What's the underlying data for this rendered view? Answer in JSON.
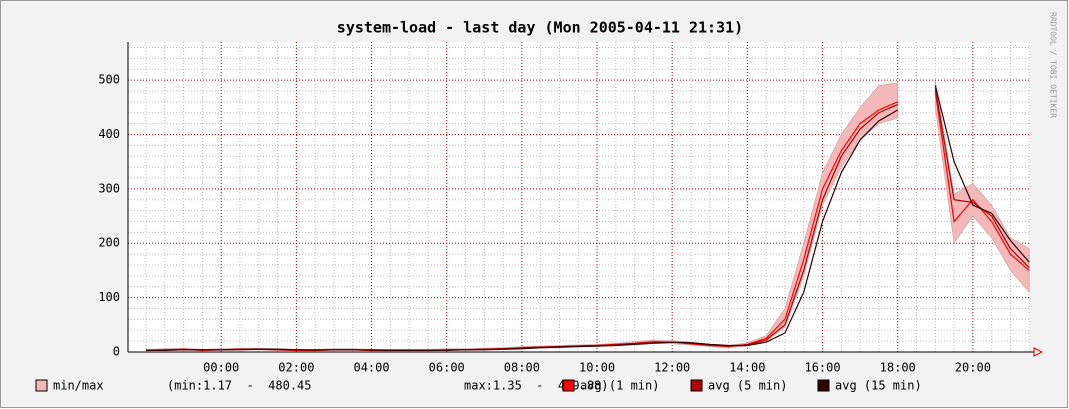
{
  "chart_data": {
    "type": "line",
    "title": "system-load - last day (Mon 2005-04-11 21:31)",
    "watermark": "RRDTOOL / TOBI OETIKER",
    "x": [
      -2,
      -1.5,
      -1,
      -0.5,
      0,
      0.5,
      1,
      1.5,
      2,
      2.5,
      3,
      3.5,
      4,
      4.5,
      5,
      5.5,
      6,
      6.5,
      7,
      7.5,
      8,
      8.5,
      9,
      9.5,
      10,
      10.5,
      11,
      11.5,
      12,
      12.5,
      13,
      13.5,
      14,
      14.5,
      15,
      15.5,
      16,
      16.5,
      17,
      17.5,
      18,
      18.5,
      19,
      19.5,
      20,
      20.5,
      21,
      21.5
    ],
    "band": {
      "name": "min/max",
      "color": "#f4b8b8",
      "min": [
        2,
        3,
        4,
        2,
        3,
        4,
        4,
        3,
        2,
        2,
        3,
        3,
        2,
        2,
        2,
        2,
        3,
        3,
        4,
        5,
        6,
        7,
        8,
        9,
        10,
        12,
        14,
        16,
        15,
        13,
        10,
        8,
        11,
        20,
        45,
        140,
        270,
        340,
        390,
        420,
        430,
        null,
        450,
        200,
        250,
        210,
        150,
        110
      ],
      "max": [
        5,
        6,
        7,
        5,
        6,
        7,
        7,
        6,
        5,
        5,
        6,
        6,
        5,
        5,
        5,
        5,
        6,
        6,
        7,
        8,
        10,
        11,
        12,
        13,
        14,
        16,
        19,
        22,
        21,
        18,
        14,
        12,
        17,
        30,
        80,
        200,
        330,
        400,
        450,
        490,
        495,
        null,
        499,
        290,
        310,
        270,
        210,
        190
      ]
    },
    "stats": [
      "(min:1.17  -  480.45",
      "max:1.35  -  499.88)"
    ],
    "series": [
      {
        "name": "avg (1 min)",
        "color": "#ff0000",
        "values": [
          3,
          4,
          5,
          3,
          4,
          5,
          5,
          4,
          3,
          3,
          4,
          4,
          3,
          3,
          3,
          3,
          4,
          4,
          5,
          6,
          8,
          9,
          10,
          11,
          12,
          14,
          16,
          19,
          18,
          15,
          12,
          10,
          14,
          25,
          60,
          170,
          300,
          370,
          420,
          445,
          460,
          null,
          480,
          240,
          280,
          240,
          180,
          150
        ]
      },
      {
        "name": "avg (5 min)",
        "color": "#b00000",
        "values": [
          3,
          4,
          4,
          4,
          4,
          5,
          5,
          4,
          4,
          3,
          4,
          4,
          3,
          3,
          3,
          3,
          4,
          4,
          5,
          6,
          7,
          9,
          10,
          11,
          12,
          13,
          16,
          18,
          18,
          16,
          13,
          11,
          13,
          22,
          50,
          150,
          280,
          360,
          410,
          440,
          455,
          null,
          485,
          280,
          275,
          250,
          190,
          155
        ]
      },
      {
        "name": "avg (15 min)",
        "color": "#330000",
        "values": [
          3,
          3,
          4,
          4,
          4,
          4,
          5,
          5,
          4,
          4,
          4,
          4,
          4,
          3,
          3,
          3,
          3,
          4,
          4,
          5,
          6,
          8,
          9,
          10,
          11,
          12,
          14,
          16,
          18,
          17,
          14,
          12,
          12,
          18,
          35,
          110,
          240,
          330,
          390,
          425,
          445,
          null,
          490,
          350,
          270,
          255,
          205,
          165
        ]
      }
    ],
    "xlim": [
      -2.48,
      21.52
    ],
    "xticks": [
      {
        "value": 0,
        "label": "00:00"
      },
      {
        "value": 2,
        "label": "02:00"
      },
      {
        "value": 4,
        "label": "04:00"
      },
      {
        "value": 6,
        "label": "06:00"
      },
      {
        "value": 8,
        "label": "08:00"
      },
      {
        "value": 10,
        "label": "10:00"
      },
      {
        "value": 12,
        "label": "12:00"
      },
      {
        "value": 14,
        "label": "14:00"
      },
      {
        "value": 16,
        "label": "16:00"
      },
      {
        "value": 18,
        "label": "18:00"
      },
      {
        "value": 20,
        "label": "20:00"
      }
    ],
    "ylim": [
      0,
      570
    ],
    "yticks": [
      0,
      100,
      200,
      300,
      400,
      500
    ],
    "grid": true
  }
}
